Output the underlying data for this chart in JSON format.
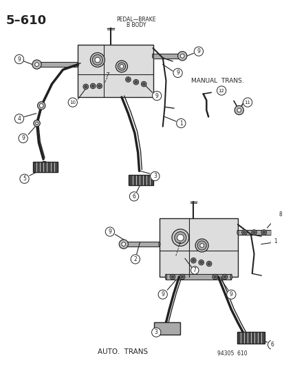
{
  "title_left": "5–610",
  "header_line1": "PEDAL—BRAKE",
  "header_line2": "B BODY",
  "label_manual": "MANUAL  TRANS.",
  "label_auto": "AUTO.  TRANS",
  "label_partnum": "94305  610",
  "bg_color": "#ffffff",
  "lc": "#222222",
  "tc": "#222222",
  "fig_w": 4.14,
  "fig_h": 5.33,
  "dpi": 100
}
